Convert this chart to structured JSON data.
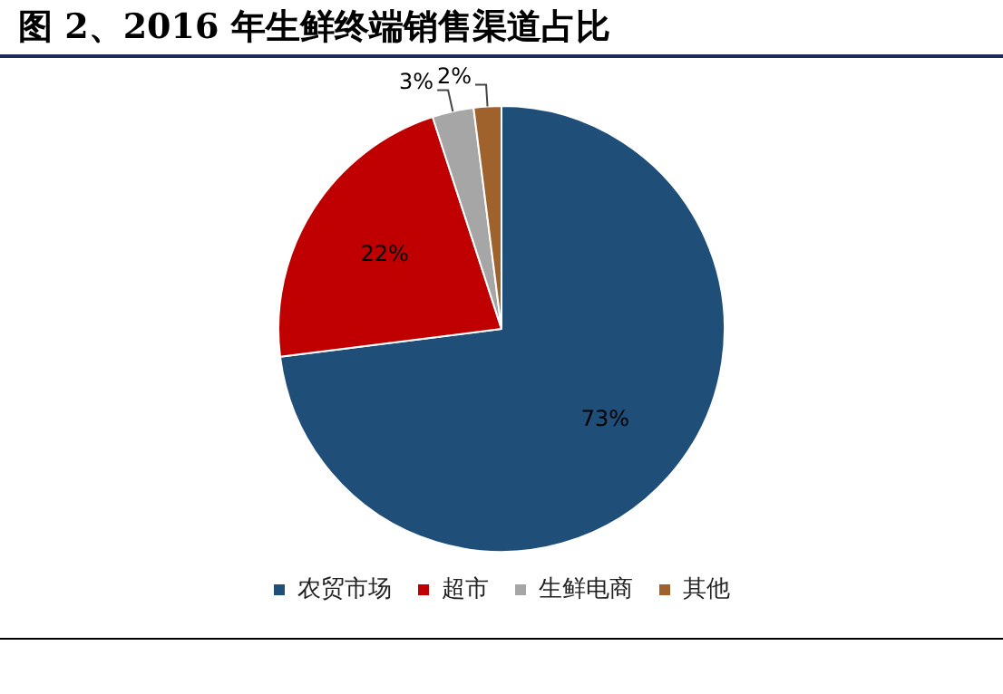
{
  "chart_data": {
    "type": "pie",
    "title": "图 2、2016 年生鲜终端销售渠道占比",
    "categories": [
      "农贸市场",
      "超市",
      "生鲜电商",
      "其他"
    ],
    "values": [
      73,
      22,
      3,
      2
    ],
    "colors": [
      "#1f4e79",
      "#c00000",
      "#a6a6a6",
      "#a0622d"
    ],
    "value_labels": [
      "73%",
      "22%",
      "3%",
      "2%"
    ],
    "legend": "bottom"
  }
}
